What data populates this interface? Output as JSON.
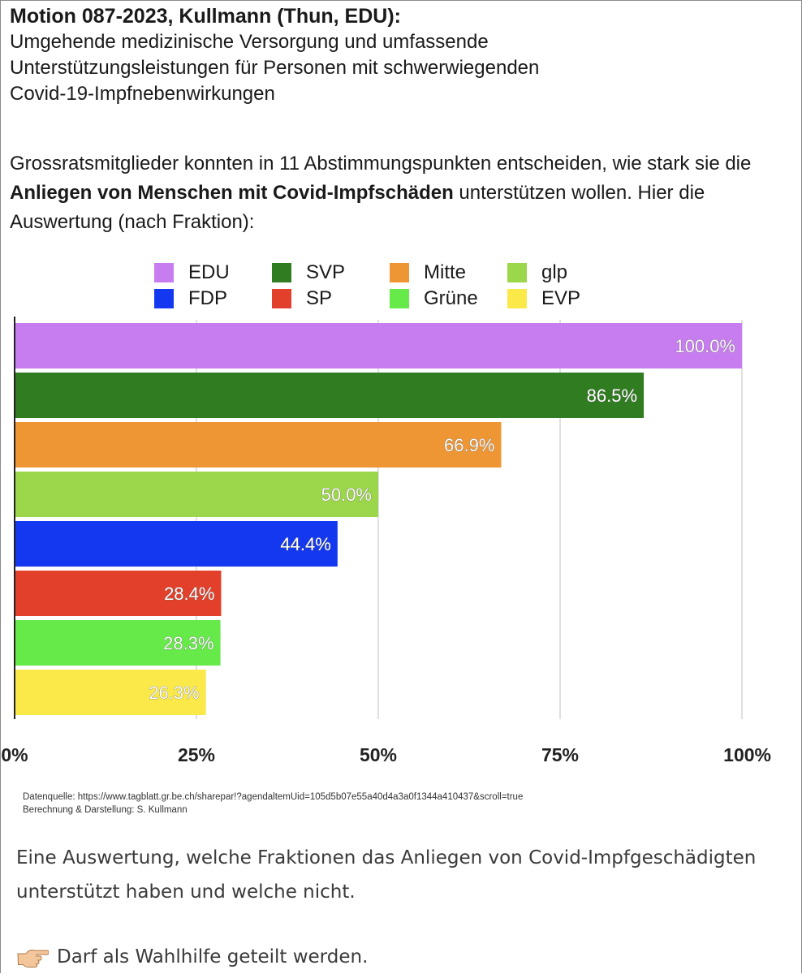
{
  "header": {
    "title": "Motion 087-2023, Kullmann (Thun, EDU):",
    "subtitle": "Umgehende medizinische Versorgung und umfassende\nUnterstützungsleistungen für Personen mit schwerwiegenden\nCovid-19-Impfnebenwirkungen"
  },
  "intro": {
    "part1": "Grossratsmitglieder konnten in 11 Abstimmungspunkten entscheiden, wie stark sie die ",
    "bold": "Anliegen von Menschen mit Covid-Impfschäden",
    "part2": " unterstützen wollen. Hier die Auswertung (nach Fraktion):"
  },
  "legend": [
    {
      "label": "EDU",
      "color": "#c77df0"
    },
    {
      "label": "SVP",
      "color": "#2f7d20"
    },
    {
      "label": "Mitte",
      "color": "#ef9634"
    },
    {
      "label": "glp",
      "color": "#9cd64a"
    },
    {
      "label": "FDP",
      "color": "#1438f0"
    },
    {
      "label": "SP",
      "color": "#e2402a"
    },
    {
      "label": "Grüne",
      "color": "#66ea4a"
    },
    {
      "label": "EVP",
      "color": "#fbe94a"
    }
  ],
  "chart_data": {
    "type": "bar",
    "orientation": "horizontal",
    "categories": [
      "EDU",
      "SVP",
      "Mitte",
      "glp",
      "FDP",
      "SP",
      "Grüne",
      "EVP"
    ],
    "values": [
      100.0,
      86.5,
      66.9,
      50.0,
      44.4,
      28.4,
      28.3,
      26.3
    ],
    "value_labels": [
      "100.0%",
      "86.5%",
      "66.9%",
      "50.0%",
      "44.4%",
      "28.4%",
      "28.3%",
      "26.3%"
    ],
    "colors": [
      "#c77df0",
      "#2f7d20",
      "#ef9634",
      "#9cd64a",
      "#1438f0",
      "#e2402a",
      "#66ea4a",
      "#fbe94a"
    ],
    "xlim": [
      0,
      100
    ],
    "xticks": [
      0,
      25,
      50,
      75,
      100
    ],
    "xtick_labels": [
      "0%",
      "25%",
      "50%",
      "75%",
      "100%"
    ],
    "grid": true,
    "legend_position": "top"
  },
  "source": {
    "line1": "Datenquelle: https://www.tagblatt.gr.be.ch/sharepar!?agendaltemUid=105d5b07e55a40d4a3a0f1344a410437&scroll=true",
    "line2": "Berechnung & Darstellung: S. Kullmann"
  },
  "caption": "Eine Auswertung, welche Fraktionen das Anliegen von Covid-Impfgeschädigten unterstützt haben und welche nicht.",
  "note": {
    "icon": "pointing-hand-icon",
    "text": "Darf als Wahlhilfe geteilt werden."
  }
}
